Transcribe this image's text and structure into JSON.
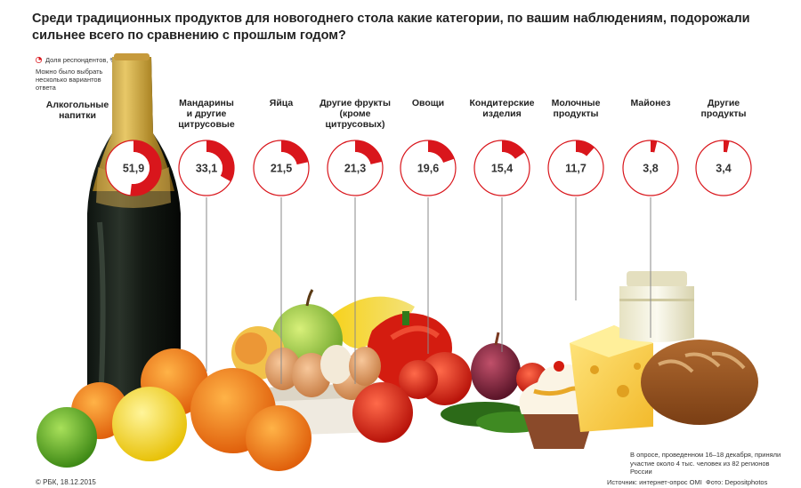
{
  "title": "Среди традиционных продуктов для новогоднего стола какие категории, по вашим наблюдениям, подорожали сильнее всего по сравнению с прошлым годом?",
  "legend": {
    "series_label": "Доля респондентов, %",
    "note": "Можно было выбрать несколько вариантов ответа"
  },
  "colors": {
    "accent": "#d9161c",
    "ring_bg": "#ffffff",
    "line": "#8a8a8a"
  },
  "chart_data": {
    "type": "pie",
    "title": "Среди традиционных продуктов для новогоднего стола какие категории, по вашим наблюдениям, подорожали сильнее всего по сравнению с прошлым годом?",
    "unit": "%",
    "categories": [
      "Алкогольные напитки",
      "Мандарины и другие цитрусовые",
      "Яйца",
      "Другие фрукты (кроме цитрусовых)",
      "Овощи",
      "Кондитерские изделия",
      "Молочные продукты",
      "Майонез",
      "Другие продукты"
    ],
    "values": [
      51.9,
      33.1,
      21.5,
      21.3,
      19.6,
      15.4,
      11.7,
      3.8,
      3.4
    ],
    "value_labels": [
      "51,9",
      "33,1",
      "21,5",
      "21,3",
      "19,6",
      "15,4",
      "11,7",
      "3,8",
      "3,4"
    ],
    "series": [
      {
        "name": "Доля респондентов, %",
        "values": [
          51.9,
          33.1,
          21.5,
          21.3,
          19.6,
          15.4,
          11.7,
          3.8,
          3.4
        ]
      }
    ]
  },
  "labels": {
    "c0": [
      "Алкогольные",
      "напитки"
    ],
    "c1": [
      "Мандарины",
      "и другие",
      "цитрусовые"
    ],
    "c2": [
      "Яйца"
    ],
    "c3": [
      "Другие фрукты",
      "(кроме",
      "цитрусовых)"
    ],
    "c4": [
      "Овощи"
    ],
    "c5": [
      "Кондитерские",
      "изделия"
    ],
    "c6": [
      "Молочные",
      "продукты"
    ],
    "c7": [
      "Майонез"
    ],
    "c8": [
      "Другие",
      "продукты"
    ]
  },
  "survey_note": "В опросе, проведенном 16–18 декабря, приняли участие около 4 тыс. человек из 82 регионов России",
  "footer": {
    "left": "© РБК, 18.12.2015",
    "source": "Источник: интернет-опрос OMI",
    "photo": "Фото: Depositphotos"
  }
}
